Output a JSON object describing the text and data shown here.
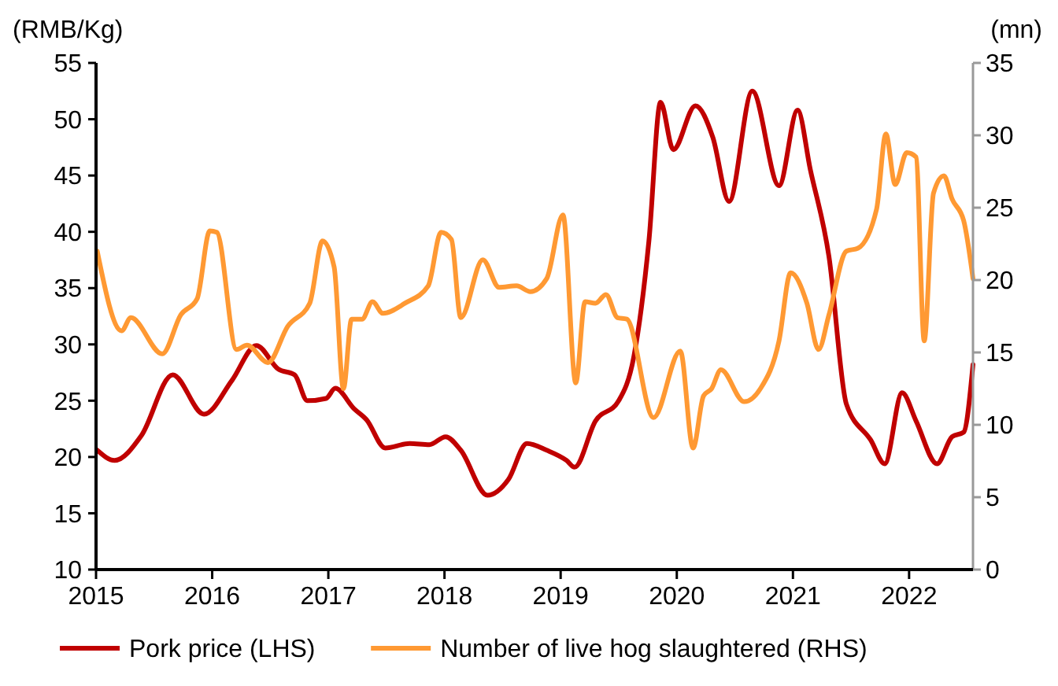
{
  "chart_data": {
    "type": "line",
    "ylabel": "(RMB/Kg)",
    "y2label": "(mn)",
    "xlim": [
      2015,
      2022.55
    ],
    "xticks": [
      2015,
      2016,
      2017,
      2018,
      2019,
      2020,
      2021,
      2022
    ],
    "ylim": [
      10,
      55
    ],
    "yticks": [
      10,
      15,
      20,
      25,
      30,
      35,
      40,
      45,
      50,
      55
    ],
    "y2lim": [
      0,
      35
    ],
    "y2ticks": [
      0,
      5,
      10,
      15,
      20,
      25,
      30,
      35
    ],
    "grid": false,
    "legend": "bottom",
    "marker": "none",
    "line_style": "solid",
    "series": [
      {
        "name": "Pork price (LHS)",
        "color": "#c00000",
        "x": [
          2015.01,
          2015.16,
          2015.39,
          2015.66,
          2015.93,
          2016.17,
          2016.38,
          2016.57,
          2016.71,
          2016.82,
          2016.98,
          2017.06,
          2017.22,
          2017.33,
          2017.49,
          2017.7,
          2017.87,
          2018.01,
          2018.14,
          2018.37,
          2018.55,
          2018.71,
          2018.88,
          2019.05,
          2019.12,
          2019.3,
          2019.5,
          2019.63,
          2019.76,
          2019.86,
          2019.97,
          2020.16,
          2020.31,
          2020.45,
          2020.65,
          2020.88,
          2021.04,
          2021.15,
          2021.31,
          2021.46,
          2021.67,
          2021.79,
          2021.94,
          2022.06,
          2022.24,
          2022.37,
          2022.47,
          2022.55
        ],
        "values": [
          20.6,
          19.7,
          21.9,
          27.3,
          23.8,
          26.8,
          29.9,
          27.8,
          27.3,
          25.0,
          25.2,
          26.1,
          24.3,
          23.3,
          20.8,
          21.2,
          21.1,
          21.8,
          20.6,
          16.6,
          18.0,
          21.2,
          20.6,
          19.7,
          19.1,
          23.2,
          25.0,
          28.9,
          39.2,
          51.5,
          47.3,
          51.2,
          48.4,
          42.7,
          52.5,
          44.1,
          50.8,
          45.5,
          37.8,
          24.7,
          21.5,
          19.4,
          25.7,
          23.2,
          19.4,
          21.8,
          22.2,
          28.2
        ]
      },
      {
        "name": "Number of live hog slaughtered (RHS)",
        "color": "#ff9933",
        "axis": "y2",
        "x": [
          2015.01,
          2015.22,
          2015.3,
          2015.57,
          2015.73,
          2015.87,
          2015.98,
          2016.04,
          2016.21,
          2016.3,
          2016.48,
          2016.65,
          2016.84,
          2016.95,
          2017.05,
          2017.13,
          2017.2,
          2017.29,
          2017.38,
          2017.47,
          2017.66,
          2017.86,
          2017.97,
          2018.06,
          2018.14,
          2018.33,
          2018.47,
          2018.62,
          2018.74,
          2018.88,
          2019.02,
          2019.13,
          2019.21,
          2019.3,
          2019.39,
          2019.49,
          2019.57,
          2019.8,
          2020.03,
          2020.14,
          2020.23,
          2020.3,
          2020.38,
          2020.58,
          2020.72,
          2020.88,
          2020.98,
          2021.12,
          2021.22,
          2021.31,
          2021.46,
          2021.56,
          2021.72,
          2021.8,
          2021.88,
          2021.98,
          2022.06,
          2022.13,
          2022.21,
          2022.3,
          2022.37,
          2022.47,
          2022.55
        ],
        "values": [
          22.0,
          16.5,
          17.4,
          14.9,
          17.6,
          18.7,
          23.4,
          23.3,
          15.2,
          15.5,
          14.3,
          16.8,
          18.4,
          22.7,
          20.9,
          12.5,
          17.3,
          17.3,
          18.5,
          17.7,
          18.4,
          19.6,
          23.3,
          22.8,
          17.4,
          21.4,
          19.5,
          19.6,
          19.2,
          20.1,
          24.5,
          12.9,
          18.5,
          18.4,
          19.0,
          17.4,
          17.3,
          10.5,
          15.1,
          8.4,
          12.0,
          12.5,
          13.8,
          11.6,
          12.5,
          15.8,
          20.5,
          18.4,
          15.2,
          17.6,
          22.0,
          22.2,
          24.9,
          30.1,
          26.6,
          28.8,
          28.5,
          15.8,
          26.0,
          27.2,
          25.6,
          24.1,
          20.1
        ]
      }
    ]
  }
}
